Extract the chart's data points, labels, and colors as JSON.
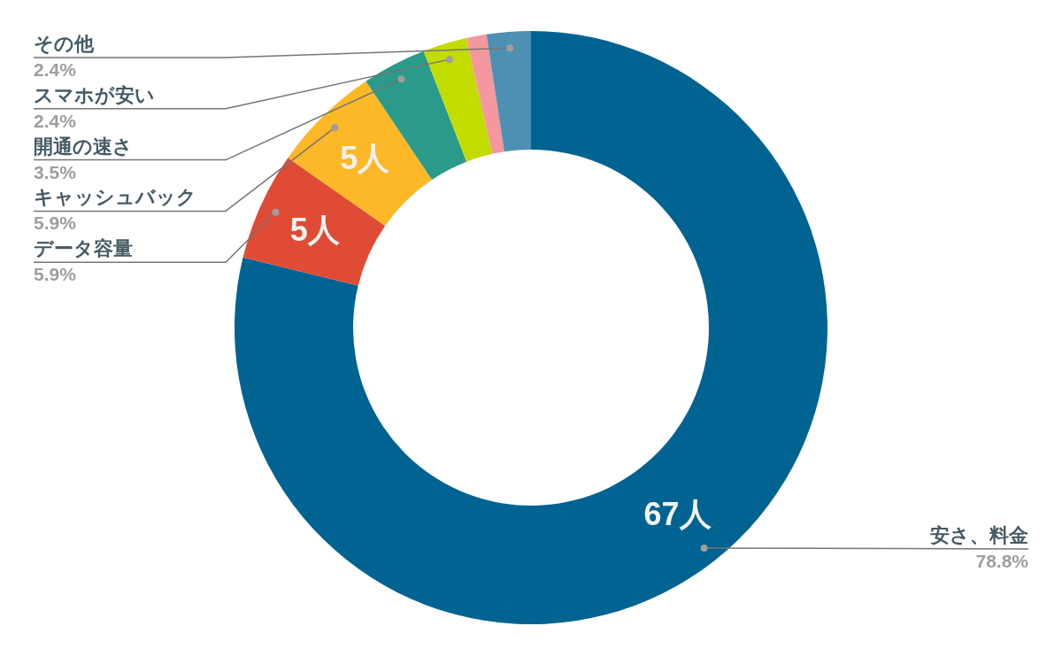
{
  "chart_data": {
    "type": "donut",
    "categories": [
      "安さ、料金",
      "データ容量",
      "キャッシュバック",
      "開通の速さ",
      "スマホが安い",
      null,
      "その他"
    ],
    "values": [
      78.8,
      5.9,
      5.9,
      3.5,
      2.4,
      1.1,
      2.4
    ],
    "value_labels": [
      "78.8%",
      "5.9%",
      "5.9%",
      "3.5%",
      "2.4%",
      null,
      "2.4%"
    ],
    "colors": [
      "#006391",
      "#e04b36",
      "#fdb827",
      "#2a9a8a",
      "#c3dc00",
      "#f4979e",
      "#4e90b3"
    ],
    "annotations": [
      {
        "text": "67人",
        "x": "安さ、料金"
      },
      {
        "text": "5人",
        "x": "データ容量"
      },
      {
        "text": "5人",
        "x": "キャッシュバック"
      }
    ]
  }
}
